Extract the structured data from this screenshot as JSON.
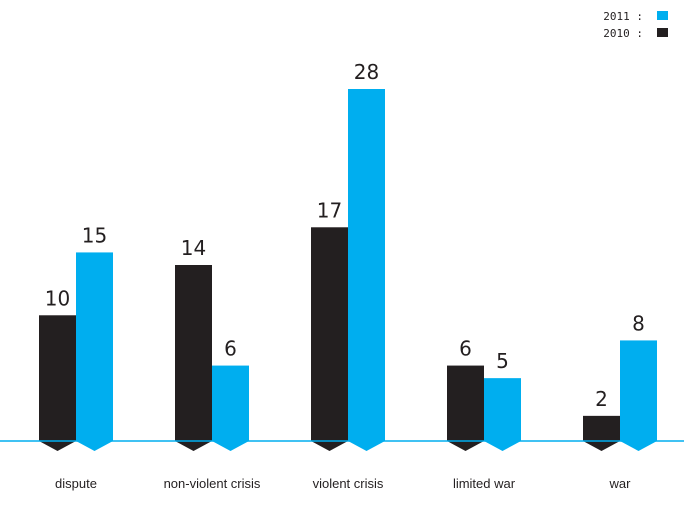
{
  "chart_data": {
    "type": "bar",
    "categories": [
      "dispute",
      "non-violent crisis",
      "violent crisis",
      "limited war",
      "war"
    ],
    "series": [
      {
        "name": "2010",
        "color": "#231f20",
        "values": [
          10,
          14,
          17,
          6,
          2
        ]
      },
      {
        "name": "2011",
        "color": "#00aeef",
        "values": [
          15,
          6,
          28,
          5,
          8
        ]
      }
    ],
    "legend": {
      "position": "top-right",
      "entries": [
        {
          "label": "2011 :",
          "series": "2011"
        },
        {
          "label": "2010 :",
          "series": "2010"
        }
      ]
    },
    "baseline_color": "#00aeef",
    "ylim": [
      0,
      28
    ],
    "grid": false,
    "data_labels": true
  }
}
